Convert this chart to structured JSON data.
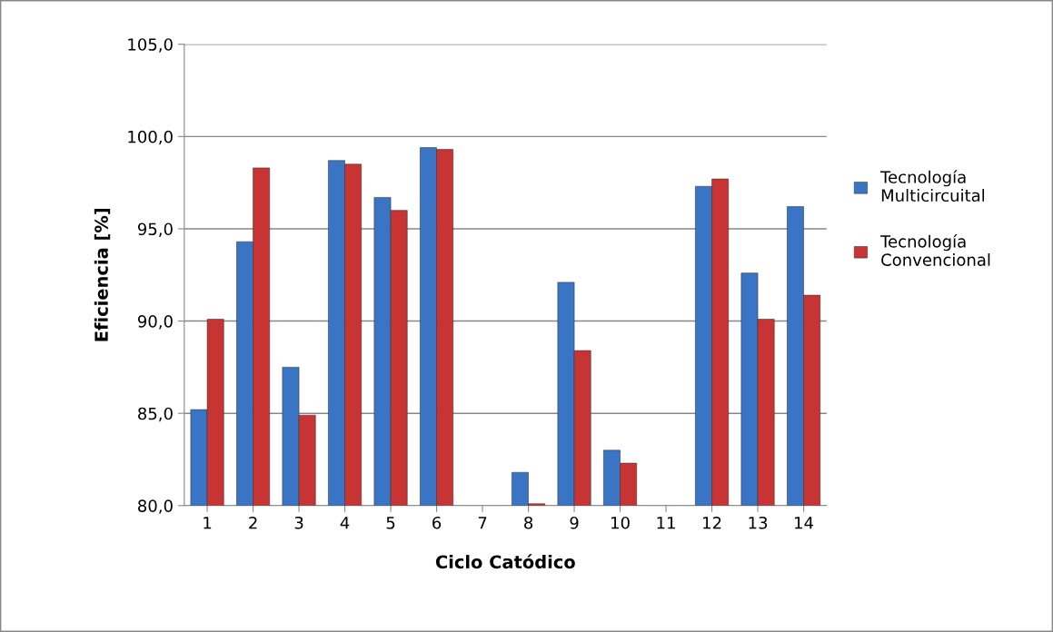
{
  "chart_data": {
    "type": "bar",
    "xlabel": "Ciclo Catódico",
    "ylabel": "Eficiencia [%]",
    "categories": [
      "1",
      "2",
      "3",
      "4",
      "5",
      "6",
      "7",
      "8",
      "9",
      "10",
      "11",
      "12",
      "13",
      "14"
    ],
    "series": [
      {
        "name": "Tecnología Multicircuital",
        "color": "#3a74c4",
        "values": [
          85.2,
          94.3,
          87.5,
          98.7,
          96.7,
          99.4,
          null,
          81.8,
          92.1,
          83.0,
          null,
          97.3,
          92.6,
          96.2
        ]
      },
      {
        "name": "Tecnología Convencional",
        "color": "#c83434",
        "values": [
          90.1,
          98.3,
          84.9,
          98.5,
          96.0,
          99.3,
          null,
          80.1,
          88.4,
          82.3,
          null,
          97.7,
          90.1,
          91.4
        ]
      }
    ],
    "ylim": [
      80,
      105
    ],
    "yticks": [
      {
        "value": 80,
        "label": "80,0"
      },
      {
        "value": 85,
        "label": "85,0"
      },
      {
        "value": 90,
        "label": "90,0"
      },
      {
        "value": 95,
        "label": "95,0"
      },
      {
        "value": 100,
        "label": "100,0"
      },
      {
        "value": 105,
        "label": "105,0"
      }
    ],
    "grid": "y",
    "legend": "right"
  }
}
